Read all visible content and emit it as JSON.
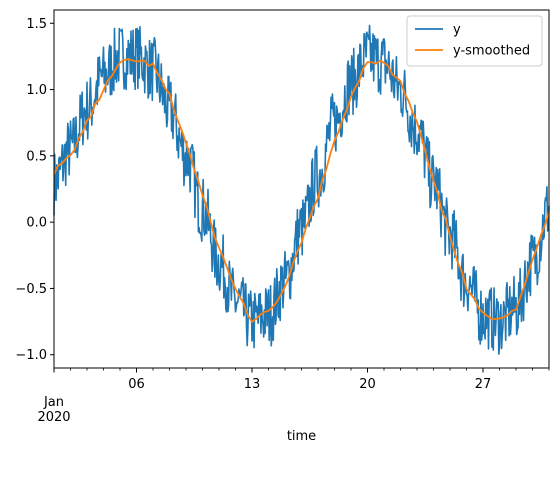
{
  "chart_data": {
    "type": "line",
    "title": "",
    "xlabel": "time",
    "ylabel": "",
    "x_start": "2020-01-01",
    "x_end": "2020-01-31",
    "xlim": [
      "2020-01-01",
      "2020-01-31"
    ],
    "ylim": [
      -1.1,
      1.6
    ],
    "x_ticks": [
      {
        "date": "2020-01-06",
        "label": "06"
      },
      {
        "date": "2020-01-13",
        "label": "13"
      },
      {
        "date": "2020-01-20",
        "label": "20"
      },
      {
        "date": "2020-01-27",
        "label": "27"
      }
    ],
    "x_minor_ticks_daily": true,
    "x_secondary_label": [
      "Jan",
      "2020"
    ],
    "y_ticks": [
      -1.0,
      -0.5,
      0.0,
      0.5,
      1.0,
      1.5
    ],
    "y_tick_labels": [
      "−1.0",
      "−0.5",
      "0.0",
      "0.5",
      "1.0",
      "1.5"
    ],
    "grid": false,
    "legend_position": "top-right",
    "series": [
      {
        "name": "y",
        "color": "#1f77b4",
        "note": "noisy sinusoid",
        "approx_points": [
          [
            "2020-01-01",
            0.3
          ],
          [
            "2020-01-02",
            0.55
          ],
          [
            "2020-01-03",
            0.85
          ],
          [
            "2020-01-04",
            1.1
          ],
          [
            "2020-01-05",
            1.25
          ],
          [
            "2020-01-06",
            1.25
          ],
          [
            "2020-01-07",
            1.15
          ],
          [
            "2020-01-08",
            0.85
          ],
          [
            "2020-01-09",
            0.5
          ],
          [
            "2020-01-10",
            0.1
          ],
          [
            "2020-01-11",
            -0.3
          ],
          [
            "2020-01-12",
            -0.6
          ],
          [
            "2020-01-13",
            -0.75
          ],
          [
            "2020-01-14",
            -0.7
          ],
          [
            "2020-01-15",
            -0.45
          ],
          [
            "2020-01-16",
            -0.05
          ],
          [
            "2020-01-17",
            0.35
          ],
          [
            "2020-01-18",
            0.75
          ],
          [
            "2020-01-19",
            1.05
          ],
          [
            "2020-01-20",
            1.25
          ],
          [
            "2020-01-21",
            1.2
          ],
          [
            "2020-01-22",
            1.0
          ],
          [
            "2020-01-23",
            0.7
          ],
          [
            "2020-01-24",
            0.3
          ],
          [
            "2020-01-25",
            -0.1
          ],
          [
            "2020-01-26",
            -0.45
          ],
          [
            "2020-01-27",
            -0.7
          ],
          [
            "2020-01-28",
            -0.75
          ],
          [
            "2020-01-29",
            -0.65
          ],
          [
            "2020-01-30",
            -0.3
          ],
          [
            "2020-01-31",
            0.1
          ]
        ]
      },
      {
        "name": "y-smoothed",
        "color": "#ff7f0e",
        "points": [
          [
            "2020-01-01",
            0.38
          ],
          [
            "2020-01-02",
            0.5
          ],
          [
            "2020-01-03",
            0.75
          ],
          [
            "2020-01-04",
            1.0
          ],
          [
            "2020-01-05",
            1.2
          ],
          [
            "2020-01-06",
            1.22
          ],
          [
            "2020-01-07",
            1.18
          ],
          [
            "2020-01-08",
            0.95
          ],
          [
            "2020-01-09",
            0.6
          ],
          [
            "2020-01-10",
            0.2
          ],
          [
            "2020-01-11",
            -0.2
          ],
          [
            "2020-01-12",
            -0.5
          ],
          [
            "2020-01-13",
            -0.75
          ],
          [
            "2020-01-14",
            -0.68
          ],
          [
            "2020-01-15",
            -0.5
          ],
          [
            "2020-01-16",
            -0.15
          ],
          [
            "2020-01-17",
            0.2
          ],
          [
            "2020-01-18",
            0.6
          ],
          [
            "2020-01-19",
            0.95
          ],
          [
            "2020-01-20",
            1.22
          ],
          [
            "2020-01-21",
            1.2
          ],
          [
            "2020-01-22",
            1.05
          ],
          [
            "2020-01-23",
            0.75
          ],
          [
            "2020-01-24",
            0.3
          ],
          [
            "2020-01-25",
            -0.1
          ],
          [
            "2020-01-26",
            -0.5
          ],
          [
            "2020-01-27",
            -0.7
          ],
          [
            "2020-01-28",
            -0.72
          ],
          [
            "2020-01-29",
            -0.65
          ],
          [
            "2020-01-30",
            -0.3
          ],
          [
            "2020-01-31",
            0.08
          ]
        ]
      }
    ]
  },
  "legend": {
    "items": [
      {
        "label": "y",
        "color": "#1f77b4"
      },
      {
        "label": "y-smoothed",
        "color": "#ff7f0e"
      }
    ]
  }
}
